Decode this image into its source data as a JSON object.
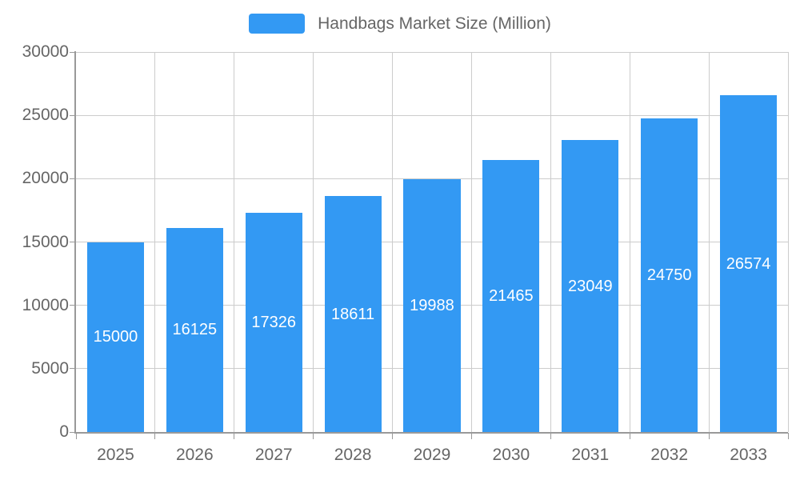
{
  "legend": {
    "label": "Handbags Market Size (Million)"
  },
  "colors": {
    "bar": "#3399F3",
    "axis_text": "#666666",
    "grid_line": "#CCCCCC",
    "axis_line": "#999999",
    "bar_label_text": "#FFFFFF",
    "background": "#FFFFFF"
  },
  "chart_data": {
    "type": "bar",
    "title": "Handbags Market Size (Million)",
    "categories": [
      "2025",
      "2026",
      "2027",
      "2028",
      "2029",
      "2030",
      "2031",
      "2032",
      "2033"
    ],
    "values": [
      15000,
      16125,
      17326,
      18611,
      19988,
      21465,
      23049,
      24750,
      26574
    ],
    "xlabel": "",
    "ylabel": "",
    "ylim": [
      0,
      30000
    ],
    "yticks": [
      0,
      5000,
      10000,
      15000,
      20000,
      25000,
      30000
    ],
    "grid": true,
    "legend_position": "top",
    "data_labels": true
  }
}
